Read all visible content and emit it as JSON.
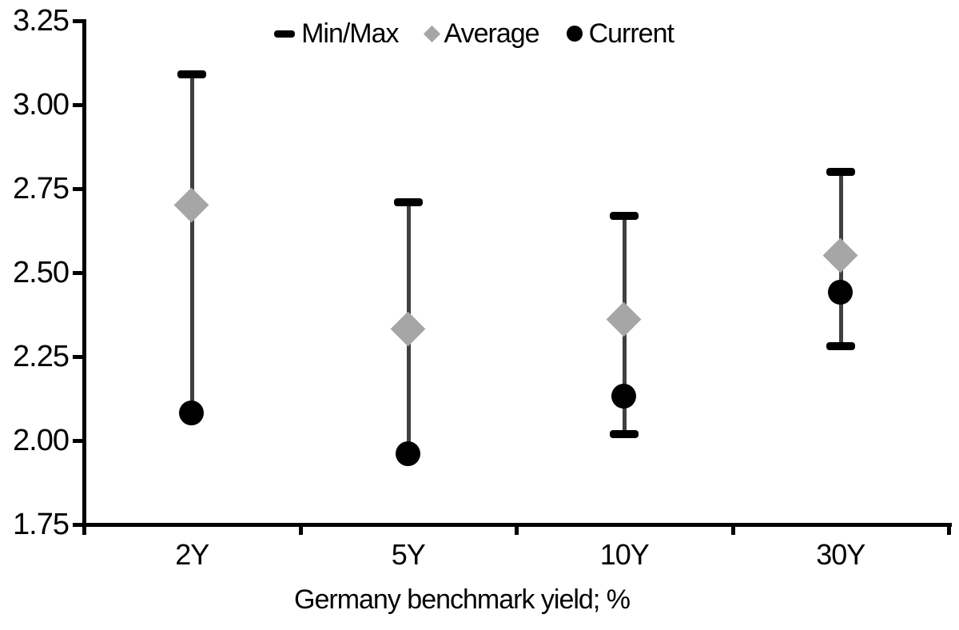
{
  "chart_data": {
    "type": "scatter",
    "subtype": "min-max-range-with-markers",
    "xlabel": "Germany benchmark yield; %",
    "ylabel": "",
    "categories": [
      "2Y",
      "5Y",
      "10Y",
      "30Y"
    ],
    "ylim": [
      1.75,
      3.25
    ],
    "ytick_step": 0.25,
    "yticks": [
      "3.25",
      "3.00",
      "2.75",
      "2.50",
      "2.25",
      "2.00",
      "1.75"
    ],
    "grid": false,
    "legend_position": "top-center",
    "series": [
      {
        "name": "Min/Max",
        "marker": "dash-cap",
        "color": "#000000",
        "line_color": "#404040",
        "max": [
          3.09,
          2.71,
          2.67,
          2.8
        ],
        "min": [
          2.08,
          1.96,
          2.02,
          2.28
        ]
      },
      {
        "name": "Average",
        "marker": "diamond",
        "color": "#a6a6a6",
        "values": [
          2.7,
          2.33,
          2.36,
          2.55
        ]
      },
      {
        "name": "Current",
        "marker": "circle",
        "color": "#000000",
        "values": [
          2.08,
          1.96,
          2.13,
          2.44
        ]
      }
    ],
    "colors": {
      "axis": "#000000",
      "text": "#000000",
      "background": "#ffffff"
    }
  }
}
